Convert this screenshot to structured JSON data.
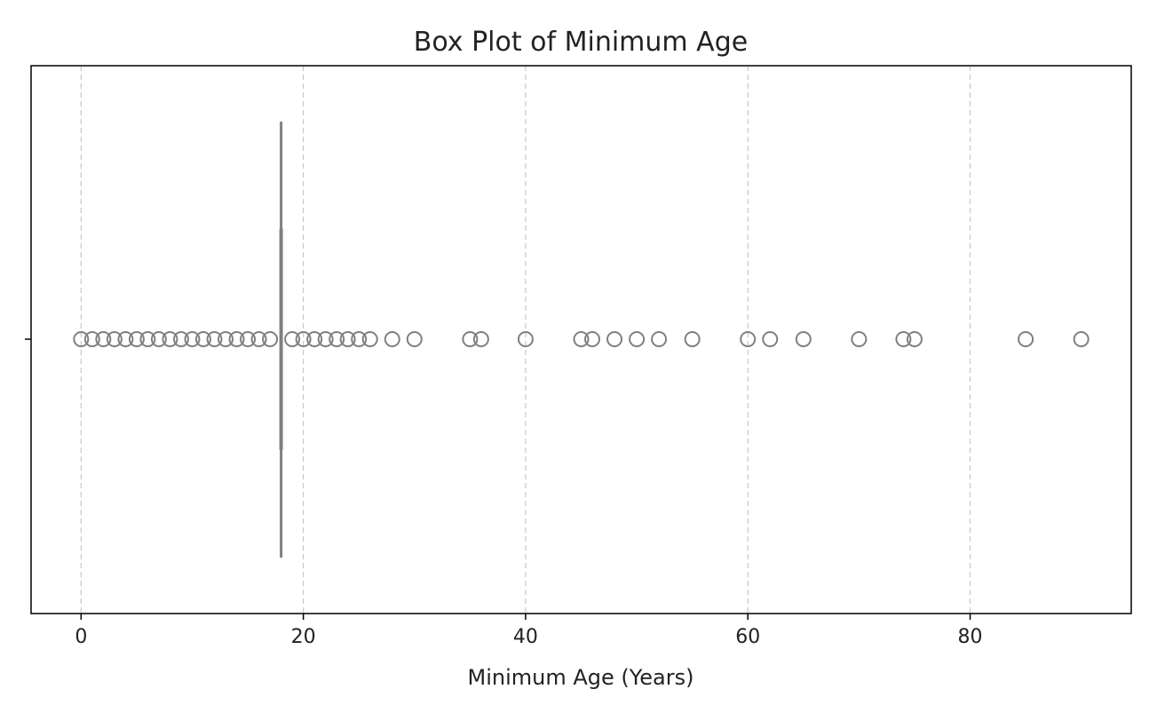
{
  "chart_data": {
    "type": "boxplot",
    "title": "Box Plot of Minimum Age",
    "xlabel": "Minimum Age (Years)",
    "ylabel": "",
    "xlim": [
      -4.5,
      94.5
    ],
    "xticks": [
      0,
      20,
      40,
      60,
      80
    ],
    "grid": "x-dashed",
    "box": {
      "q1": 18,
      "median": 18,
      "q3": 18,
      "whisker_low": 18,
      "whisker_high": 18
    },
    "outliers": [
      0,
      1,
      2,
      3,
      4,
      5,
      6,
      7,
      8,
      9,
      10,
      11,
      12,
      13,
      14,
      15,
      16,
      17,
      19,
      20,
      21,
      22,
      23,
      24,
      25,
      26,
      28,
      30,
      35,
      36,
      40,
      45,
      46,
      48,
      50,
      52,
      55,
      60,
      62,
      65,
      70,
      74,
      75,
      85,
      90
    ],
    "colors": {
      "box": "#808080",
      "outlier_stroke": "#808080",
      "grid": "#c8c8c8",
      "frame": "#000000"
    }
  }
}
